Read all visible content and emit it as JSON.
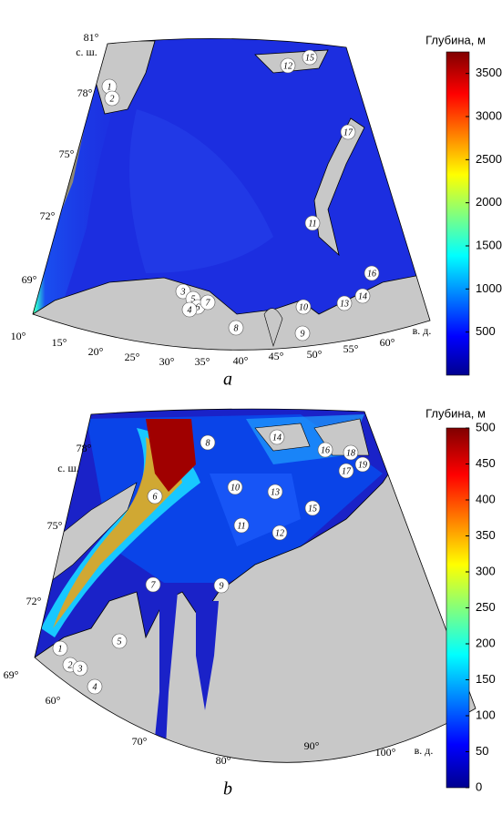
{
  "panels": [
    {
      "label": "a",
      "colorbar": {
        "title": "Глубина, м",
        "lim": [
          0,
          3750
        ],
        "ticks": [
          500,
          1000,
          1500,
          2000,
          2500,
          3000,
          3500
        ]
      },
      "lat_labels": [
        "81°",
        "с. ш.",
        "78°",
        "75°",
        "72°",
        "69°"
      ],
      "lon_labels": [
        "10°",
        "15°",
        "20°",
        "25°",
        "30°",
        "35°",
        "40°",
        "45°",
        "50°",
        "55°",
        "60°",
        "в. д."
      ],
      "stations": [
        "1",
        "2",
        "12",
        "15",
        "17",
        "11",
        "16",
        "14",
        "13",
        "10",
        "3",
        "5",
        "6",
        "4",
        "7",
        "8",
        "9"
      ]
    },
    {
      "label": "b",
      "colorbar": {
        "title": "Глубина, м",
        "lim": [
          0,
          500
        ],
        "ticks": [
          0,
          50,
          100,
          150,
          200,
          250,
          300,
          350,
          400,
          450,
          500
        ]
      },
      "lat_labels": [
        "78°",
        "с. ш.",
        "75°",
        "72°",
        "69°"
      ],
      "lon_labels": [
        "60°",
        "70°",
        "80°",
        "90°",
        "100°",
        "в. д."
      ],
      "stations": [
        "8",
        "14",
        "16",
        "18",
        "19",
        "17",
        "10",
        "13",
        "6",
        "15",
        "11",
        "12",
        "7",
        "9",
        "5",
        "1",
        "2",
        "3",
        "4"
      ]
    }
  ]
}
